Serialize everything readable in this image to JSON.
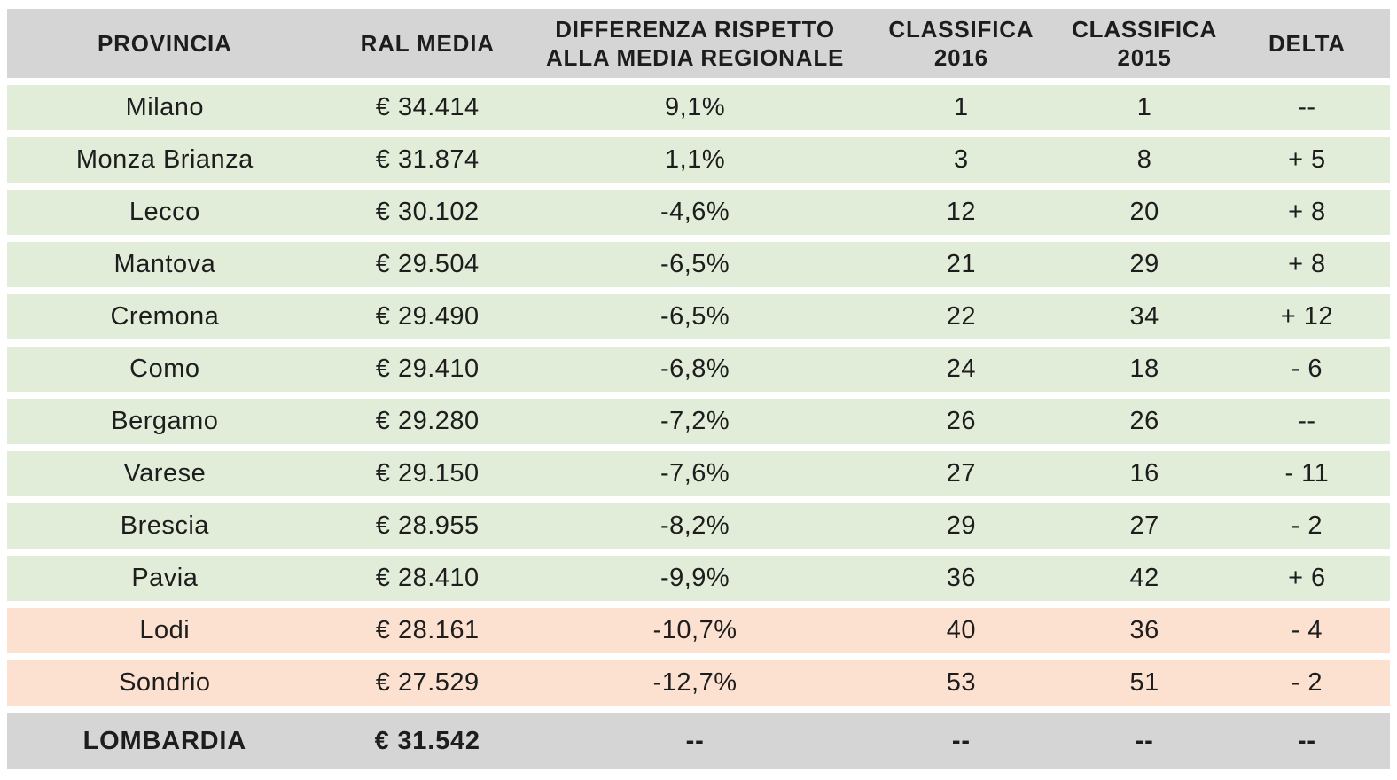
{
  "colors": {
    "header_bg": "#d5d5d5",
    "row_green": "#e1ecd9",
    "row_peach": "#fce1d1",
    "total_bg": "#d5d5d5",
    "text": "#1d1d1d",
    "background": "#ffffff"
  },
  "table": {
    "columns": [
      {
        "key": "provincia",
        "label": "PROVINCIA"
      },
      {
        "key": "ral_media",
        "label": "RAL MEDIA"
      },
      {
        "key": "differenza",
        "label": "DIFFERENZA RISPETTO\nALLA MEDIA REGIONALE"
      },
      {
        "key": "classifica_2016",
        "label": "CLASSIFICA\n2016"
      },
      {
        "key": "classifica_2015",
        "label": "CLASSIFICA\n2015"
      },
      {
        "key": "delta",
        "label": "DELTA"
      }
    ],
    "rows": [
      {
        "tone": "green",
        "provincia": "Milano",
        "ral_media": "€ 34.414",
        "differenza": "9,1%",
        "classifica_2016": "1",
        "classifica_2015": "1",
        "delta": "--"
      },
      {
        "tone": "green",
        "provincia": "Monza Brianza",
        "ral_media": "€ 31.874",
        "differenza": "1,1%",
        "classifica_2016": "3",
        "classifica_2015": "8",
        "delta": "+ 5"
      },
      {
        "tone": "green",
        "provincia": "Lecco",
        "ral_media": "€ 30.102",
        "differenza": "-4,6%",
        "classifica_2016": "12",
        "classifica_2015": "20",
        "delta": "+ 8"
      },
      {
        "tone": "green",
        "provincia": "Mantova",
        "ral_media": "€ 29.504",
        "differenza": "-6,5%",
        "classifica_2016": "21",
        "classifica_2015": "29",
        "delta": "+ 8"
      },
      {
        "tone": "green",
        "provincia": "Cremona",
        "ral_media": "€ 29.490",
        "differenza": "-6,5%",
        "classifica_2016": "22",
        "classifica_2015": "34",
        "delta": "+ 12"
      },
      {
        "tone": "green",
        "provincia": "Como",
        "ral_media": "€ 29.410",
        "differenza": "-6,8%",
        "classifica_2016": "24",
        "classifica_2015": "18",
        "delta": "- 6"
      },
      {
        "tone": "green",
        "provincia": "Bergamo",
        "ral_media": "€ 29.280",
        "differenza": "-7,2%",
        "classifica_2016": "26",
        "classifica_2015": "26",
        "delta": "--"
      },
      {
        "tone": "green",
        "provincia": "Varese",
        "ral_media": "€ 29.150",
        "differenza": "-7,6%",
        "classifica_2016": "27",
        "classifica_2015": "16",
        "delta": "- 11"
      },
      {
        "tone": "green",
        "provincia": "Brescia",
        "ral_media": "€ 28.955",
        "differenza": "-8,2%",
        "classifica_2016": "29",
        "classifica_2015": "27",
        "delta": "- 2"
      },
      {
        "tone": "green",
        "provincia": "Pavia",
        "ral_media": "€ 28.410",
        "differenza": "-9,9%",
        "classifica_2016": "36",
        "classifica_2015": "42",
        "delta": "+ 6"
      },
      {
        "tone": "peach",
        "provincia": "Lodi",
        "ral_media": "€ 28.161",
        "differenza": "-10,7%",
        "classifica_2016": "40",
        "classifica_2015": "36",
        "delta": "- 4"
      },
      {
        "tone": "peach",
        "provincia": "Sondrio",
        "ral_media": "€ 27.529",
        "differenza": "-12,7%",
        "classifica_2016": "53",
        "classifica_2015": "51",
        "delta": "- 2"
      }
    ],
    "footer": {
      "provincia": "LOMBARDIA",
      "ral_media": "€ 31.542",
      "differenza": "--",
      "classifica_2016": "--",
      "classifica_2015": "--",
      "delta": "--"
    }
  },
  "chart_data": {
    "type": "table",
    "title": "",
    "columns": [
      "PROVINCIA",
      "RAL MEDIA",
      "DIFFERENZA RISPETTO ALLA MEDIA REGIONALE",
      "CLASSIFICA 2016",
      "CLASSIFICA 2015",
      "DELTA"
    ],
    "rows": [
      [
        "Milano",
        "€ 34.414",
        "9,1%",
        "1",
        "1",
        "--"
      ],
      [
        "Monza Brianza",
        "€ 31.874",
        "1,1%",
        "3",
        "8",
        "+ 5"
      ],
      [
        "Lecco",
        "€ 30.102",
        "-4,6%",
        "12",
        "20",
        "+ 8"
      ],
      [
        "Mantova",
        "€ 29.504",
        "-6,5%",
        "21",
        "29",
        "+ 8"
      ],
      [
        "Cremona",
        "€ 29.490",
        "-6,5%",
        "22",
        "34",
        "+ 12"
      ],
      [
        "Como",
        "€ 29.410",
        "-6,8%",
        "24",
        "18",
        "- 6"
      ],
      [
        "Bergamo",
        "€ 29.280",
        "-7,2%",
        "26",
        "26",
        "--"
      ],
      [
        "Varese",
        "€ 29.150",
        "-7,6%",
        "27",
        "16",
        "- 11"
      ],
      [
        "Brescia",
        "€ 28.955",
        "-8,2%",
        "29",
        "27",
        "- 2"
      ],
      [
        "Pavia",
        "€ 28.410",
        "-9,9%",
        "36",
        "42",
        "+ 6"
      ],
      [
        "Lodi",
        "€ 28.161",
        "-10,7%",
        "40",
        "36",
        "- 4"
      ],
      [
        "Sondrio",
        "€ 27.529",
        "-12,7%",
        "53",
        "51",
        "- 2"
      ],
      [
        "LOMBARDIA",
        "€ 31.542",
        "--",
        "--",
        "--",
        "--"
      ]
    ],
    "highlight": {
      "green_rows": [
        "Milano",
        "Monza Brianza",
        "Lecco",
        "Mantova",
        "Cremona",
        "Como",
        "Bergamo",
        "Varese",
        "Brescia",
        "Pavia"
      ],
      "peach_rows": [
        "Lodi",
        "Sondrio"
      ],
      "gray_rows": [
        "LOMBARDIA"
      ]
    }
  }
}
